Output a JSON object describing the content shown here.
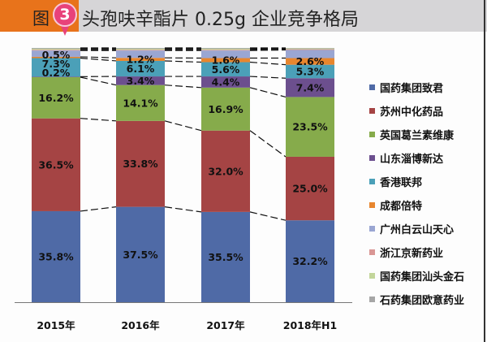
{
  "header": {
    "figure_label": "图",
    "badge_number": "3",
    "title": "头孢呋辛酯片 0.25g 企业竞争格局",
    "accent_color": "#e8731b",
    "badge_color": "#e8427a"
  },
  "chart_data": {
    "type": "bar",
    "stacked": true,
    "normalized_percent": true,
    "title": "头孢呋辛酯片 0.25g 企业竞争格局",
    "xlabel": "",
    "ylabel": "",
    "ylim": [
      0,
      100
    ],
    "grid": false,
    "legend_position": "right",
    "categories": [
      "2015年",
      "2016年",
      "2017年",
      "2018年H1"
    ],
    "series": [
      {
        "name": "国药集团致君",
        "color": "#4f6aa6",
        "values": [
          35.8,
          37.5,
          35.5,
          32.2
        ],
        "labels": [
          "35.8%",
          "37.5%",
          "35.5%",
          "32.2%"
        ]
      },
      {
        "name": "苏州中化药品",
        "color": "#a54444",
        "values": [
          36.5,
          33.8,
          32.0,
          25.0
        ],
        "labels": [
          "36.5%",
          "33.8%",
          "32.0%",
          "25.0%"
        ]
      },
      {
        "name": "英国葛兰素维康",
        "color": "#86ab4b",
        "values": [
          16.2,
          14.1,
          16.9,
          23.5
        ],
        "labels": [
          "16.2%",
          "14.1%",
          "16.9%",
          "23.5%"
        ]
      },
      {
        "name": "山东淄博新达",
        "color": "#6c4f8e",
        "values": [
          0.2,
          3.4,
          4.4,
          7.4
        ],
        "labels": [
          "0.2%",
          "3.4%",
          "4.4%",
          "7.4%"
        ]
      },
      {
        "name": "香港联邦",
        "color": "#4ba0b8",
        "values": [
          7.3,
          6.1,
          5.6,
          5.3
        ],
        "labels": [
          "7.3%",
          "6.1%",
          "5.6%",
          "5.3%"
        ]
      },
      {
        "name": "成都倍特",
        "color": "#e8862e",
        "values": [
          0.5,
          1.2,
          1.6,
          2.6
        ],
        "labels": [
          "0.5%",
          "1.2%",
          "1.6%",
          "2.6%"
        ]
      },
      {
        "name": "广州白云山天心",
        "color": "#9aa6d2",
        "values": [
          2.5,
          2.9,
          3.0,
          3.2
        ],
        "labels": [
          null,
          null,
          null,
          null
        ]
      },
      {
        "name": "浙江京新药业",
        "color": "#d99694",
        "values": [
          0.3,
          0.3,
          0.3,
          0.3
        ],
        "labels": [
          null,
          null,
          null,
          null
        ]
      },
      {
        "name": "国药集团汕头金石",
        "color": "#c3d69b",
        "values": [
          0.4,
          0.4,
          0.4,
          0.3
        ],
        "labels": [
          null,
          null,
          null,
          null
        ]
      },
      {
        "name": "石药集团欧意药业",
        "color": "#a6a6a6",
        "values": [
          0.3,
          0.3,
          0.3,
          0.2
        ],
        "labels": [
          null,
          null,
          null,
          null
        ]
      }
    ]
  }
}
